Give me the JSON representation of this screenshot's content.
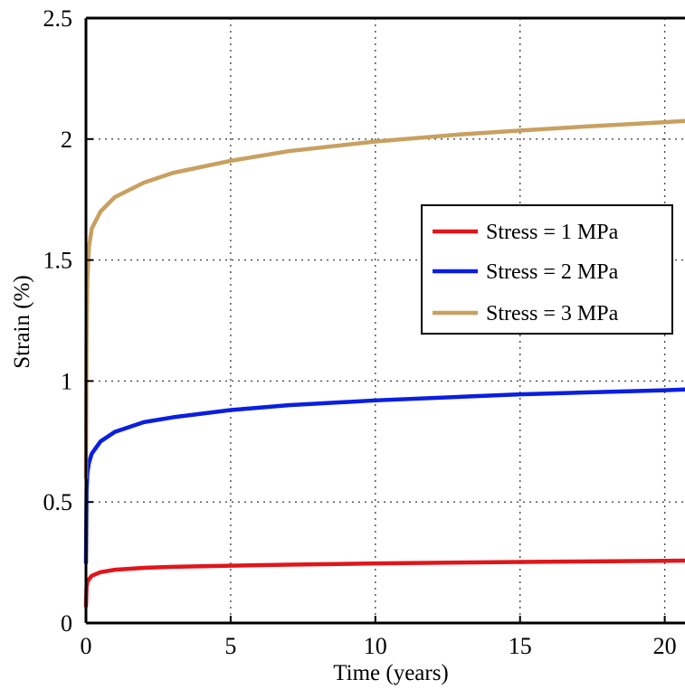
{
  "chart_data": {
    "type": "line",
    "xlabel": "Time (years)",
    "ylabel": "Strain (%)",
    "xlim": [
      0,
      20.7
    ],
    "ylim": [
      0,
      2.5
    ],
    "x_ticks": [
      "0",
      "5",
      "10",
      "15",
      "20"
    ],
    "y_ticks": [
      "0",
      "0.5",
      "1",
      "1.5",
      "2",
      "2.5"
    ],
    "grid": true,
    "legend_position": "right",
    "series": [
      {
        "name": "Stress = 1 MPa",
        "color": "#e0161b",
        "x": [
          0,
          0.02,
          0.05,
          0.1,
          0.2,
          0.5,
          1,
          2,
          3,
          5,
          7,
          10,
          13,
          15,
          17,
          20,
          20.7
        ],
        "y": [
          0.07,
          0.15,
          0.17,
          0.18,
          0.195,
          0.21,
          0.22,
          0.228,
          0.232,
          0.237,
          0.241,
          0.246,
          0.25,
          0.252,
          0.254,
          0.257,
          0.258
        ]
      },
      {
        "name": "Stress = 2 MPa",
        "color": "#0a1fe0",
        "x": [
          0,
          0.02,
          0.05,
          0.1,
          0.2,
          0.5,
          1,
          2,
          3,
          5,
          7,
          10,
          13,
          15,
          17,
          20,
          20.7
        ],
        "y": [
          0.25,
          0.55,
          0.62,
          0.66,
          0.7,
          0.75,
          0.79,
          0.83,
          0.85,
          0.88,
          0.9,
          0.92,
          0.935,
          0.945,
          0.952,
          0.962,
          0.965
        ]
      },
      {
        "name": "Stress = 3 MPa",
        "color": "#c8a060",
        "x": [
          0,
          0.02,
          0.05,
          0.1,
          0.2,
          0.5,
          1,
          2,
          3,
          5,
          7,
          10,
          13,
          15,
          17,
          20,
          20.7
        ],
        "y": [
          0.6,
          1.2,
          1.42,
          1.55,
          1.63,
          1.7,
          1.76,
          1.82,
          1.86,
          1.91,
          1.95,
          1.99,
          2.02,
          2.035,
          2.05,
          2.07,
          2.075
        ]
      }
    ]
  }
}
